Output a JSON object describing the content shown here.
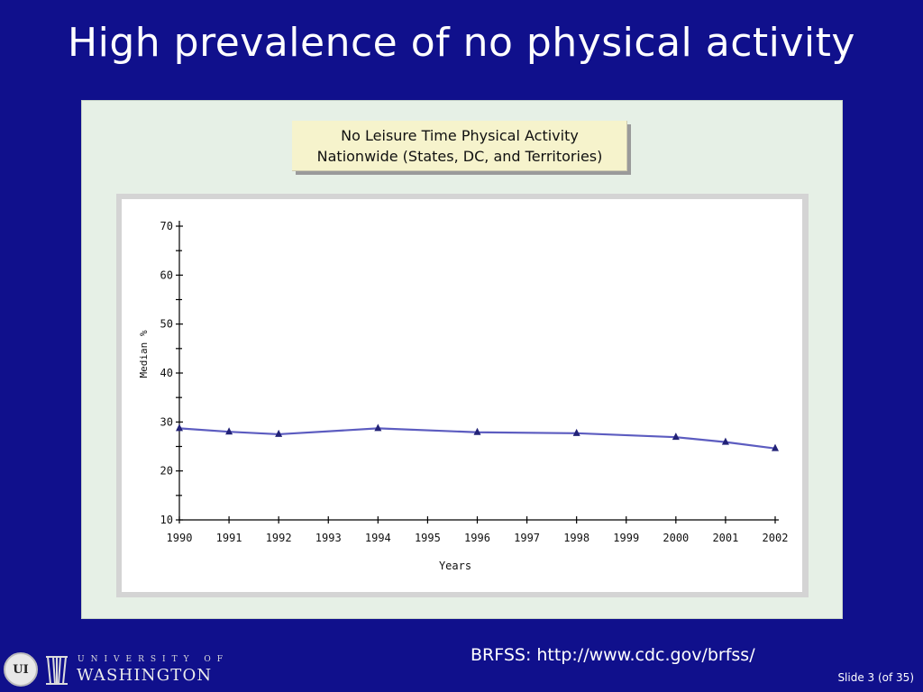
{
  "slide": {
    "title": "High prevalence of no physical activity",
    "source": "BRFSS: http://www.cdc.gov/brfss/",
    "slide_number": "Slide  3 (of  35)",
    "background_color": "#10108c"
  },
  "logo": {
    "seal_text": "UI",
    "line1": "UNIVERSITY OF",
    "line2": "WASHINGTON"
  },
  "chart_data": {
    "type": "line",
    "title_line1": "No Leisure Time Physical Activity",
    "title_line2": "Nationwide (States, DC, and Territories)",
    "xlabel": "Years",
    "ylabel": "Median %",
    "categories": [
      "1990",
      "1991",
      "1992",
      "1993",
      "1994",
      "1995",
      "1996",
      "1997",
      "1998",
      "1999",
      "2000",
      "2001",
      "2002"
    ],
    "ylim": [
      10,
      70
    ],
    "yticks": [
      10,
      20,
      30,
      40,
      50,
      60,
      70
    ],
    "series": [
      {
        "x": [
          "1990",
          "1991",
          "1992",
          "1994",
          "1996",
          "1998",
          "2000",
          "2001",
          "2002"
        ],
        "values": [
          28.7,
          28.0,
          27.5,
          28.7,
          27.9,
          27.7,
          26.9,
          25.9,
          24.6
        ],
        "color": "#5c5cc0",
        "marker": "triangle"
      }
    ],
    "grid": false,
    "legend": "none"
  }
}
